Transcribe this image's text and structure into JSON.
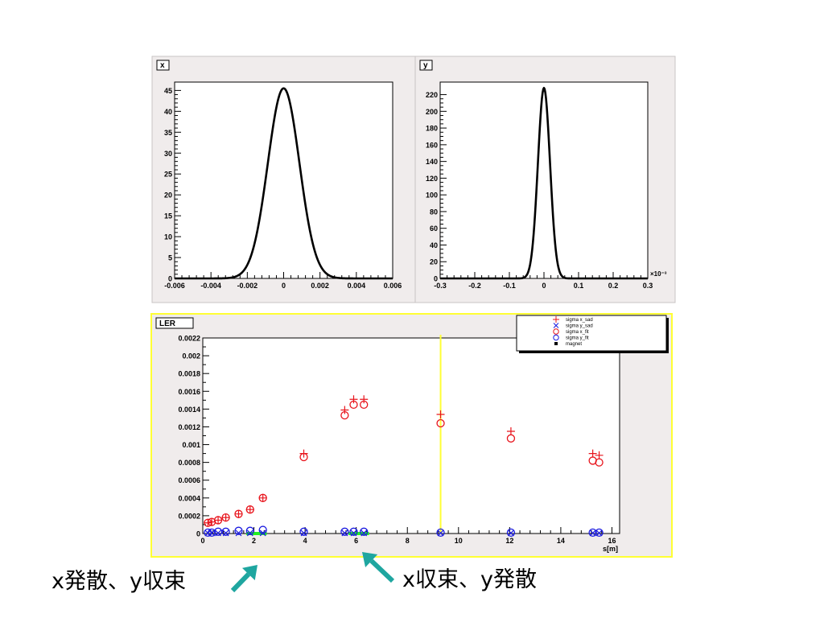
{
  "colors": {
    "frame_bg": "#f0ecec",
    "plot_bg": "#ffffff",
    "highlight": "#ffff33",
    "red": "#e8141c",
    "blue": "#1a1ae0",
    "green": "#22ee22",
    "arrow": "#1fa6a0"
  },
  "annotations": {
    "left": "x発散、y収束",
    "right": "x収束、y発散"
  },
  "chart_data": [
    {
      "type": "line",
      "title": "x",
      "xlim": [
        -0.006,
        0.006
      ],
      "ylim": [
        0,
        47
      ],
      "x_ticks": [
        "-0.006",
        "-0.004",
        "-0.002",
        "0",
        "0.002",
        "0.004",
        "0.006"
      ],
      "y_ticks": [
        "0",
        "5",
        "10",
        "15",
        "20",
        "25",
        "30",
        "35",
        "40",
        "45"
      ],
      "series": [
        {
          "shape": "gaussian",
          "mean": 0,
          "sigma": 0.00087,
          "peak": 45.5
        }
      ]
    },
    {
      "type": "line",
      "title": "y",
      "xlim": [
        -0.3,
        0.3
      ],
      "ylim": [
        0,
        235
      ],
      "x_exponent": "×10⁻³",
      "x_ticks": [
        "-0.3",
        "-0.2",
        "-0.1",
        "0",
        "0.1",
        "0.2",
        "0.3"
      ],
      "y_ticks": [
        "0",
        "20",
        "40",
        "60",
        "80",
        "100",
        "120",
        "140",
        "160",
        "180",
        "200",
        "220"
      ],
      "series": [
        {
          "shape": "gaussian",
          "mean": 0,
          "sigma": 0.0175,
          "peak": 228
        }
      ]
    },
    {
      "type": "scatter",
      "title": "LER",
      "xlabel": "s[m]",
      "xlim": [
        0,
        16.3
      ],
      "ylim": [
        0,
        0.0022
      ],
      "x_ticks": [
        "0",
        "2",
        "4",
        "6",
        "8",
        "10",
        "12",
        "14",
        "16"
      ],
      "y_ticks": [
        "0",
        "0.0002",
        "0.0004",
        "0.0006",
        "0.0008",
        "0.001",
        "0.0012",
        "0.0014",
        "0.0016",
        "0.0018",
        "0.002",
        "0.0022"
      ],
      "legend": [
        "sigma x_sad",
        "sigma y_sad",
        "sigma x_fit",
        "sigma y_fit",
        "magnet"
      ],
      "legend_position": "top-right",
      "marker_line_s": 9.3,
      "magnet_segments": [
        [
          1.7,
          2.5
        ],
        [
          5.7,
          6.5
        ]
      ],
      "s": [
        0.2,
        0.35,
        0.6,
        0.9,
        1.4,
        1.85,
        2.35,
        3.95,
        5.55,
        5.9,
        6.3,
        9.3,
        12.05,
        15.25,
        15.5
      ],
      "sigma_x_sad": [
        0.00012,
        0.00013,
        0.00015,
        0.00018,
        0.00022,
        0.00027,
        0.0004,
        0.0009,
        0.00139,
        0.00151,
        0.00151,
        0.00134,
        0.00115,
        0.0009,
        0.00088
      ],
      "sigma_x_fit": [
        0.00012,
        0.00013,
        0.00015,
        0.00018,
        0.00022,
        0.00027,
        0.0004,
        0.00086,
        0.00133,
        0.00145,
        0.00145,
        0.00124,
        0.00107,
        0.00082,
        0.0008
      ],
      "sigma_y_sad": [
        5e-06,
        5e-06,
        5e-06,
        5e-06,
        5e-06,
        5e-06,
        5e-06,
        5e-06,
        5e-06,
        5e-06,
        5e-06,
        5e-06,
        5e-06,
        5e-06,
        5e-06
      ],
      "sigma_y_fit": [
        1e-05,
        1e-05,
        2e-05,
        2e-05,
        3e-05,
        3e-05,
        4e-05,
        2e-05,
        2e-05,
        2e-05,
        2e-05,
        1e-05,
        1e-05,
        1e-05,
        1e-05
      ]
    }
  ]
}
